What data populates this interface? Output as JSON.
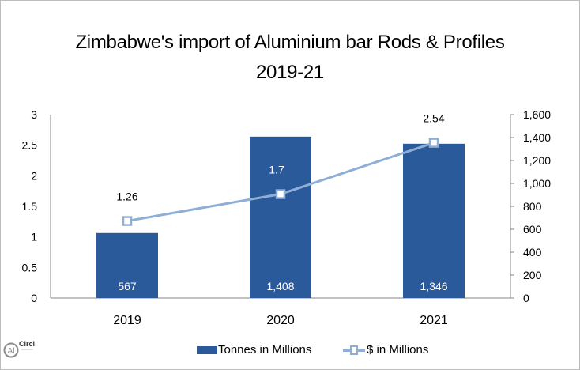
{
  "title": {
    "line1": "Zimbabwe's import of Aluminium bar Rods & Profiles",
    "line2": "2019-21"
  },
  "legend": {
    "bar_label": "Tonnes in Millions",
    "line_label": "$ in Millions"
  },
  "logo": {
    "text": "Circle",
    "prefix": "Al"
  },
  "colors": {
    "bar": "#2a5a9a",
    "line": "#8eaed6",
    "axis": "#868686"
  },
  "chart_data": {
    "type": "bar+line",
    "title": "Zimbabwe's import of Aluminium bar Rods & Profiles 2019-21",
    "categories": [
      "2019",
      "2020",
      "2021"
    ],
    "series": [
      {
        "name": "Tonnes in Millions",
        "type": "bar",
        "axis": "right",
        "values": [
          567,
          1408,
          1346
        ],
        "labels": [
          "567",
          "1,408",
          "1,346"
        ]
      },
      {
        "name": "$ in Millions",
        "type": "line",
        "axis": "left",
        "values": [
          1.26,
          1.7,
          2.54
        ],
        "labels": [
          "1.26",
          "1.7",
          "2.54"
        ]
      }
    ],
    "left_axis": {
      "ticks": [
        "0",
        "0.5",
        "1",
        "1.5",
        "2",
        "2.5",
        "3"
      ],
      "ylim": [
        0,
        3
      ]
    },
    "right_axis": {
      "ticks": [
        "0",
        "200",
        "400",
        "600",
        "800",
        "1,000",
        "1,200",
        "1,400",
        "1,600"
      ],
      "ylim": [
        0,
        1600
      ]
    },
    "legend_position": "bottom",
    "grid": false
  }
}
